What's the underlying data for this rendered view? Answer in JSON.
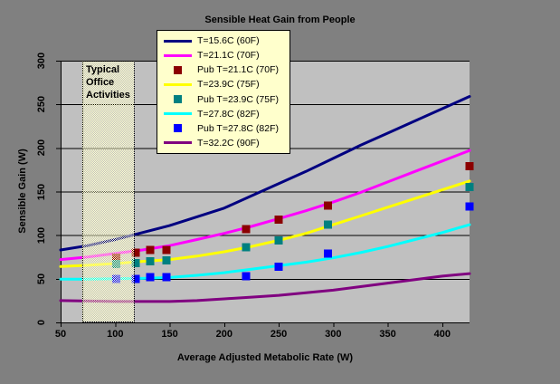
{
  "chart_data": {
    "type": "line",
    "title": "Sensible Heat Gain from People",
    "xlabel": "Average Adjusted Metabolic Rate (W)",
    "ylabel": "Sensible Gain (W)",
    "xlim": [
      50,
      425
    ],
    "ylim": [
      0,
      300
    ],
    "x_ticks": [
      50,
      100,
      150,
      200,
      250,
      300,
      350,
      400
    ],
    "y_ticks": [
      0,
      50,
      100,
      150,
      200,
      250,
      300
    ],
    "grid": "horizontal-on",
    "legend_position": "inside-top-center",
    "colors": {
      "outer_bg": "#808080",
      "plot_bg": "#c0c0c0",
      "gridline": "#000000",
      "axis": "#000000",
      "text": "#000000",
      "legend_bg": "#ffffcc",
      "band_fill": "#ffffcc"
    },
    "annotation_band": {
      "label": "Typical Office Activities",
      "label_lines": [
        "Typical",
        "Office",
        "Activities"
      ],
      "x_range": [
        70,
        118
      ]
    },
    "series": [
      {
        "name": "T=15.6C (60F)",
        "kind": "line",
        "color": "#000080",
        "points": [
          [
            50,
            83
          ],
          [
            75,
            88
          ],
          [
            100,
            95
          ],
          [
            125,
            103
          ],
          [
            150,
            111
          ],
          [
            175,
            121
          ],
          [
            200,
            131
          ],
          [
            225,
            145
          ],
          [
            250,
            159
          ],
          [
            275,
            173
          ],
          [
            300,
            188
          ],
          [
            325,
            203
          ],
          [
            350,
            217
          ],
          [
            375,
            231
          ],
          [
            400,
            245
          ],
          [
            425,
            259
          ]
        ]
      },
      {
        "name": "T=21.1C (70F)",
        "kind": "line",
        "color": "#ff00ff",
        "points": [
          [
            50,
            72
          ],
          [
            75,
            75
          ],
          [
            100,
            79
          ],
          [
            125,
            83
          ],
          [
            150,
            88
          ],
          [
            175,
            95
          ],
          [
            200,
            102
          ],
          [
            225,
            110
          ],
          [
            250,
            119
          ],
          [
            275,
            128
          ],
          [
            300,
            138
          ],
          [
            325,
            149
          ],
          [
            350,
            161
          ],
          [
            375,
            173
          ],
          [
            400,
            185
          ],
          [
            425,
            197
          ]
        ]
      },
      {
        "name": "Pub T=21.1C (70F)",
        "kind": "scatter",
        "color": "#8b0000",
        "points": [
          [
            101,
            74
          ],
          [
            119,
            80
          ],
          [
            132,
            83
          ],
          [
            147,
            83
          ],
          [
            220,
            107
          ],
          [
            250,
            118
          ],
          [
            295,
            134
          ],
          [
            425,
            179
          ]
        ]
      },
      {
        "name": "T=23.9C (75F)",
        "kind": "line",
        "color": "#ffff00",
        "points": [
          [
            50,
            64
          ],
          [
            75,
            65.5
          ],
          [
            100,
            67.5
          ],
          [
            125,
            70
          ],
          [
            150,
            72
          ],
          [
            175,
            76
          ],
          [
            200,
            81
          ],
          [
            225,
            87
          ],
          [
            250,
            94
          ],
          [
            275,
            102
          ],
          [
            300,
            112
          ],
          [
            325,
            122
          ],
          [
            350,
            132
          ],
          [
            375,
            142
          ],
          [
            400,
            152
          ],
          [
            425,
            162
          ]
        ]
      },
      {
        "name": "Pub T=23.9C (75F)",
        "kind": "scatter",
        "color": "#008080",
        "points": [
          [
            101,
            67
          ],
          [
            119,
            68
          ],
          [
            132,
            70
          ],
          [
            147,
            71
          ],
          [
            220,
            86
          ],
          [
            250,
            94
          ],
          [
            295,
            112
          ],
          [
            425,
            155
          ]
        ]
      },
      {
        "name": "T=27.8C (82F)",
        "kind": "line",
        "color": "#00ffff",
        "points": [
          [
            50,
            49.5
          ],
          [
            75,
            49.5
          ],
          [
            100,
            50
          ],
          [
            125,
            50.5
          ],
          [
            150,
            51.5
          ],
          [
            175,
            54
          ],
          [
            200,
            57
          ],
          [
            225,
            61
          ],
          [
            250,
            65
          ],
          [
            275,
            69
          ],
          [
            300,
            74
          ],
          [
            325,
            80
          ],
          [
            350,
            87
          ],
          [
            375,
            95
          ],
          [
            400,
            103
          ],
          [
            425,
            112
          ]
        ]
      },
      {
        "name": "Pub T=27.8C (82F)",
        "kind": "scatter",
        "color": "#0000ff",
        "points": [
          [
            101,
            50
          ],
          [
            119,
            50
          ],
          [
            132,
            52
          ],
          [
            147,
            52
          ],
          [
            220,
            53
          ],
          [
            250,
            64
          ],
          [
            295,
            79
          ],
          [
            425,
            133
          ]
        ]
      },
      {
        "name": "T=32.2C (90F)",
        "kind": "line",
        "color": "#800080",
        "points": [
          [
            50,
            25
          ],
          [
            75,
            24.5
          ],
          [
            100,
            24
          ],
          [
            125,
            24
          ],
          [
            150,
            24
          ],
          [
            175,
            25
          ],
          [
            200,
            27
          ],
          [
            225,
            29
          ],
          [
            250,
            31
          ],
          [
            275,
            34
          ],
          [
            300,
            37
          ],
          [
            325,
            41
          ],
          [
            350,
            45
          ],
          [
            375,
            49
          ],
          [
            400,
            53
          ],
          [
            425,
            56
          ]
        ]
      }
    ]
  }
}
